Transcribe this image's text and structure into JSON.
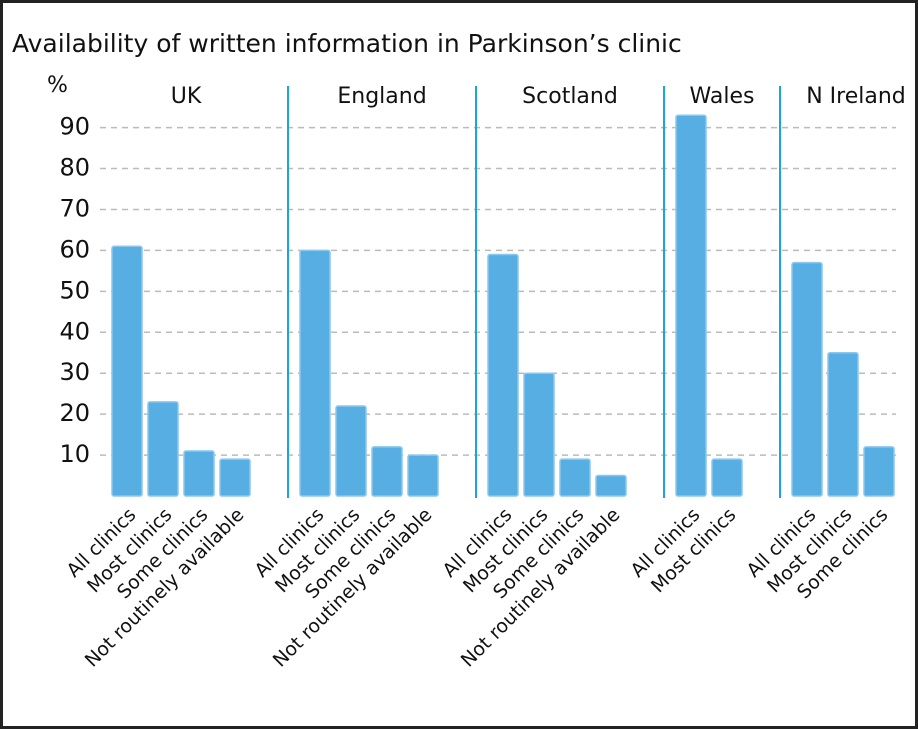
{
  "chart_data": {
    "type": "bar",
    "title": "Availability of written information in Parkinson’s clinic",
    "y_label": "%",
    "color": "#56aee2",
    "ylim": [
      0,
      96
    ],
    "yticks": [
      10,
      20,
      30,
      40,
      50,
      60,
      70,
      80,
      90
    ],
    "grid": true,
    "groups": [
      {
        "name": "UK",
        "categories": [
          "All clinics",
          "Most clinics",
          "Some clinics",
          "Not routinely available"
        ],
        "values": [
          61,
          23,
          11,
          9
        ]
      },
      {
        "name": "England",
        "categories": [
          "All clinics",
          "Most clinics",
          "Some clinics",
          "Not routinely available"
        ],
        "values": [
          60,
          22,
          12,
          10
        ]
      },
      {
        "name": "Scotland",
        "categories": [
          "All clinics",
          "Most clinics",
          "Some clinics",
          "Not routinely available"
        ],
        "values": [
          59,
          30,
          9,
          5
        ]
      },
      {
        "name": "Wales",
        "categories": [
          "All clinics",
          "Most clinics"
        ],
        "values": [
          93,
          9
        ]
      },
      {
        "name": "N Ireland",
        "categories": [
          "All clinics",
          "Most clinics",
          "Some clinics"
        ],
        "values": [
          57,
          35,
          12
        ]
      }
    ]
  }
}
